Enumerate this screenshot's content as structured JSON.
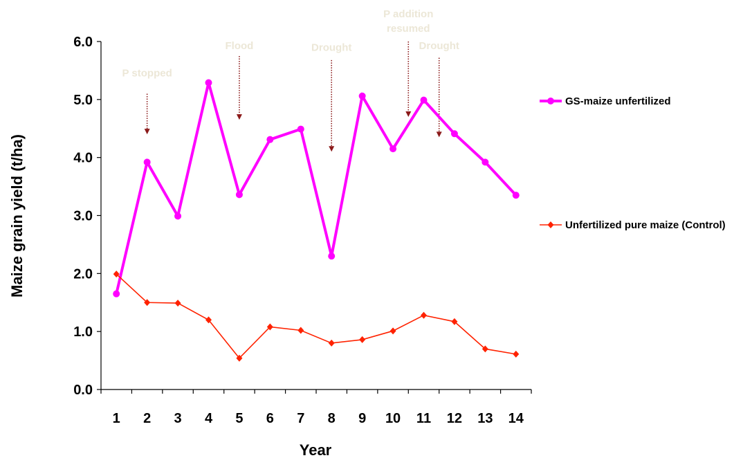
{
  "chart_data": {
    "type": "line",
    "title": "",
    "xlabel": "Year",
    "ylabel": "Maize grain yield (t/ha)",
    "categories": [
      "1",
      "2",
      "3",
      "4",
      "5",
      "6",
      "7",
      "8",
      "9",
      "10",
      "11",
      "12",
      "13",
      "14"
    ],
    "ylim": [
      0,
      6
    ],
    "y_ticks": [
      "0.0",
      "1.0",
      "2.0",
      "3.0",
      "4.0",
      "5.0",
      "6.0"
    ],
    "grid": false,
    "legend_position": "right",
    "series": [
      {
        "name": "GS-maize unfertilized",
        "color": "#ff00ff",
        "marker": "circle",
        "values": [
          1.65,
          3.92,
          2.99,
          5.29,
          3.36,
          4.31,
          4.49,
          2.3,
          5.06,
          4.15,
          4.99,
          4.41,
          3.92,
          3.35
        ]
      },
      {
        "name": "Unfertilized pure maize (Control)",
        "color": "#ff2200",
        "marker": "diamond",
        "values": [
          1.99,
          1.5,
          1.49,
          1.2,
          0.54,
          1.08,
          1.02,
          0.8,
          0.86,
          1.01,
          1.28,
          1.17,
          0.7,
          0.61
        ]
      }
    ],
    "annotations": [
      {
        "lines": [
          "P stopped"
        ],
        "year": 2,
        "text_y": 5.4,
        "arrow_from": 5.1,
        "arrow_to": 4.4
      },
      {
        "lines": [
          "Flood"
        ],
        "year": 5,
        "text_y": 5.87,
        "arrow_from": 5.75,
        "arrow_to": 4.65
      },
      {
        "lines": [
          "Drought"
        ],
        "year": 8,
        "text_y": 5.84,
        "arrow_from": 5.68,
        "arrow_to": 4.1
      },
      {
        "lines": [
          "P addition",
          "resumed"
        ],
        "year": 10.5,
        "text_y": 6.42,
        "arrow_from": 6.0,
        "arrow_to": 4.7
      },
      {
        "lines": [
          "Drought"
        ],
        "year": 11.5,
        "text_y": 5.87,
        "arrow_from": 5.72,
        "arrow_to": 4.35
      }
    ],
    "colors": {
      "axis": "#000000",
      "annotation_text": "#ece7d7",
      "annotation_arrow": "#8b1a1a"
    }
  }
}
